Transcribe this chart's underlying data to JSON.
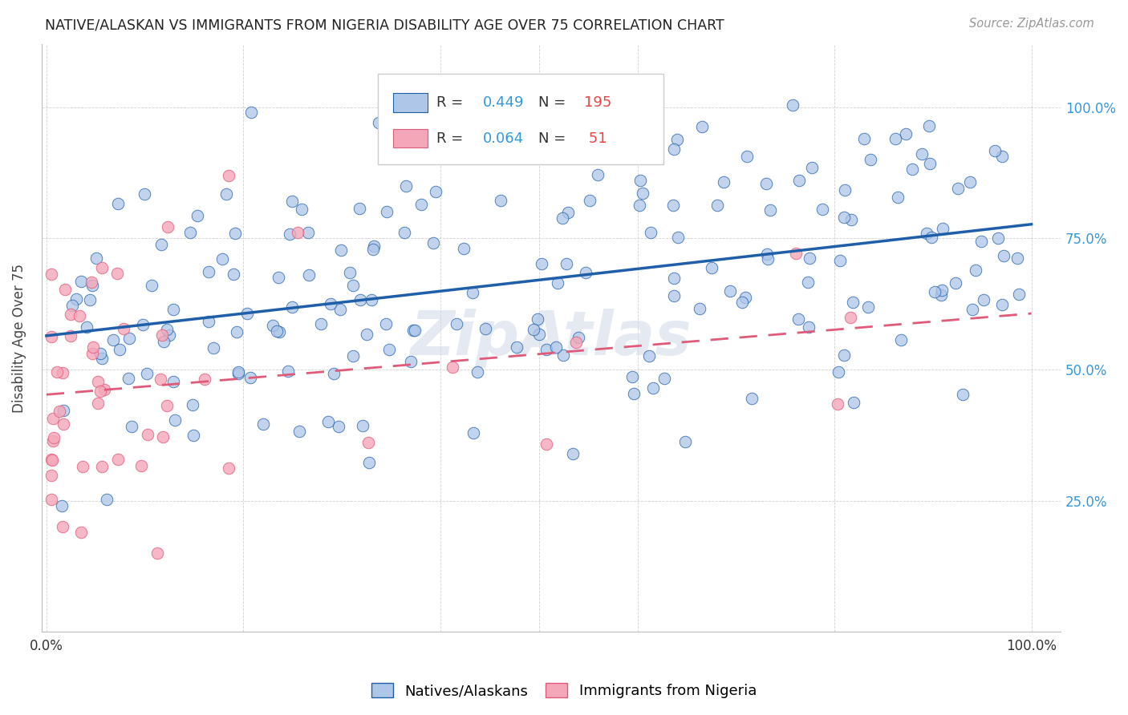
{
  "title": "NATIVE/ALASKAN VS IMMIGRANTS FROM NIGERIA DISABILITY AGE OVER 75 CORRELATION CHART",
  "source": "Source: ZipAtlas.com",
  "ylabel": "Disability Age Over 75",
  "legend_labels": [
    "Natives/Alaskans",
    "Immigrants from Nigeria"
  ],
  "native_R": "0.449",
  "native_N": "195",
  "nigeria_R": "0.064",
  "nigeria_N": "51",
  "native_color": "#aec6e8",
  "native_line_color": "#1f5faa",
  "nigeria_color": "#f4a7b9",
  "nigeria_line_color": "#e05a7a",
  "watermark": "ZipAtlas",
  "background_color": "#ffffff",
  "xlim": [
    0.0,
    1.0
  ],
  "ylim": [
    0.0,
    1.1
  ],
  "native_seed": 42,
  "nigeria_seed": 99
}
